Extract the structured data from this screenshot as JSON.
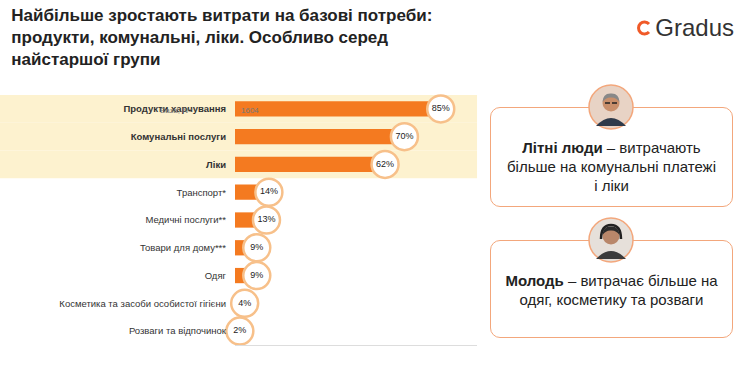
{
  "chart_data": {
    "type": "bar",
    "orientation": "horizontal",
    "title": "Найбільше зростають витрати на базові потреби:\nпродукти, комунальні, ліки. Особливо серед\nнайстаршої групи",
    "categories": [
      "Продукти харчування",
      "Комунальні послуги",
      "Ліки",
      "Транспорт*",
      "Медичні послуги**",
      "Товари для дому***",
      "Одяг",
      "Косметика та засоби особистої гігієни",
      "Розваги та відпочинок"
    ],
    "values": [
      85,
      70,
      62,
      14,
      13,
      9,
      9,
      4,
      2
    ],
    "value_labels": [
      "85%",
      "70%",
      "62%",
      "14%",
      "13%",
      "9%",
      "9%",
      "4%",
      "2%"
    ],
    "color": "#f47a20",
    "xlim": [
      0,
      100
    ],
    "data_labels": true,
    "tick_labels": "y",
    "grid": false,
    "logo": "Gradus",
    "base_label": "База, N=",
    "base_n": 1604,
    "callouts": [
      {
        "bold": "Літні люди",
        "text": " – витрачають більше на комунальні платежі і ліки"
      },
      {
        "bold": "Молодь",
        "text": " – витрачає більше на одяг, косметику та розваги"
      }
    ]
  }
}
